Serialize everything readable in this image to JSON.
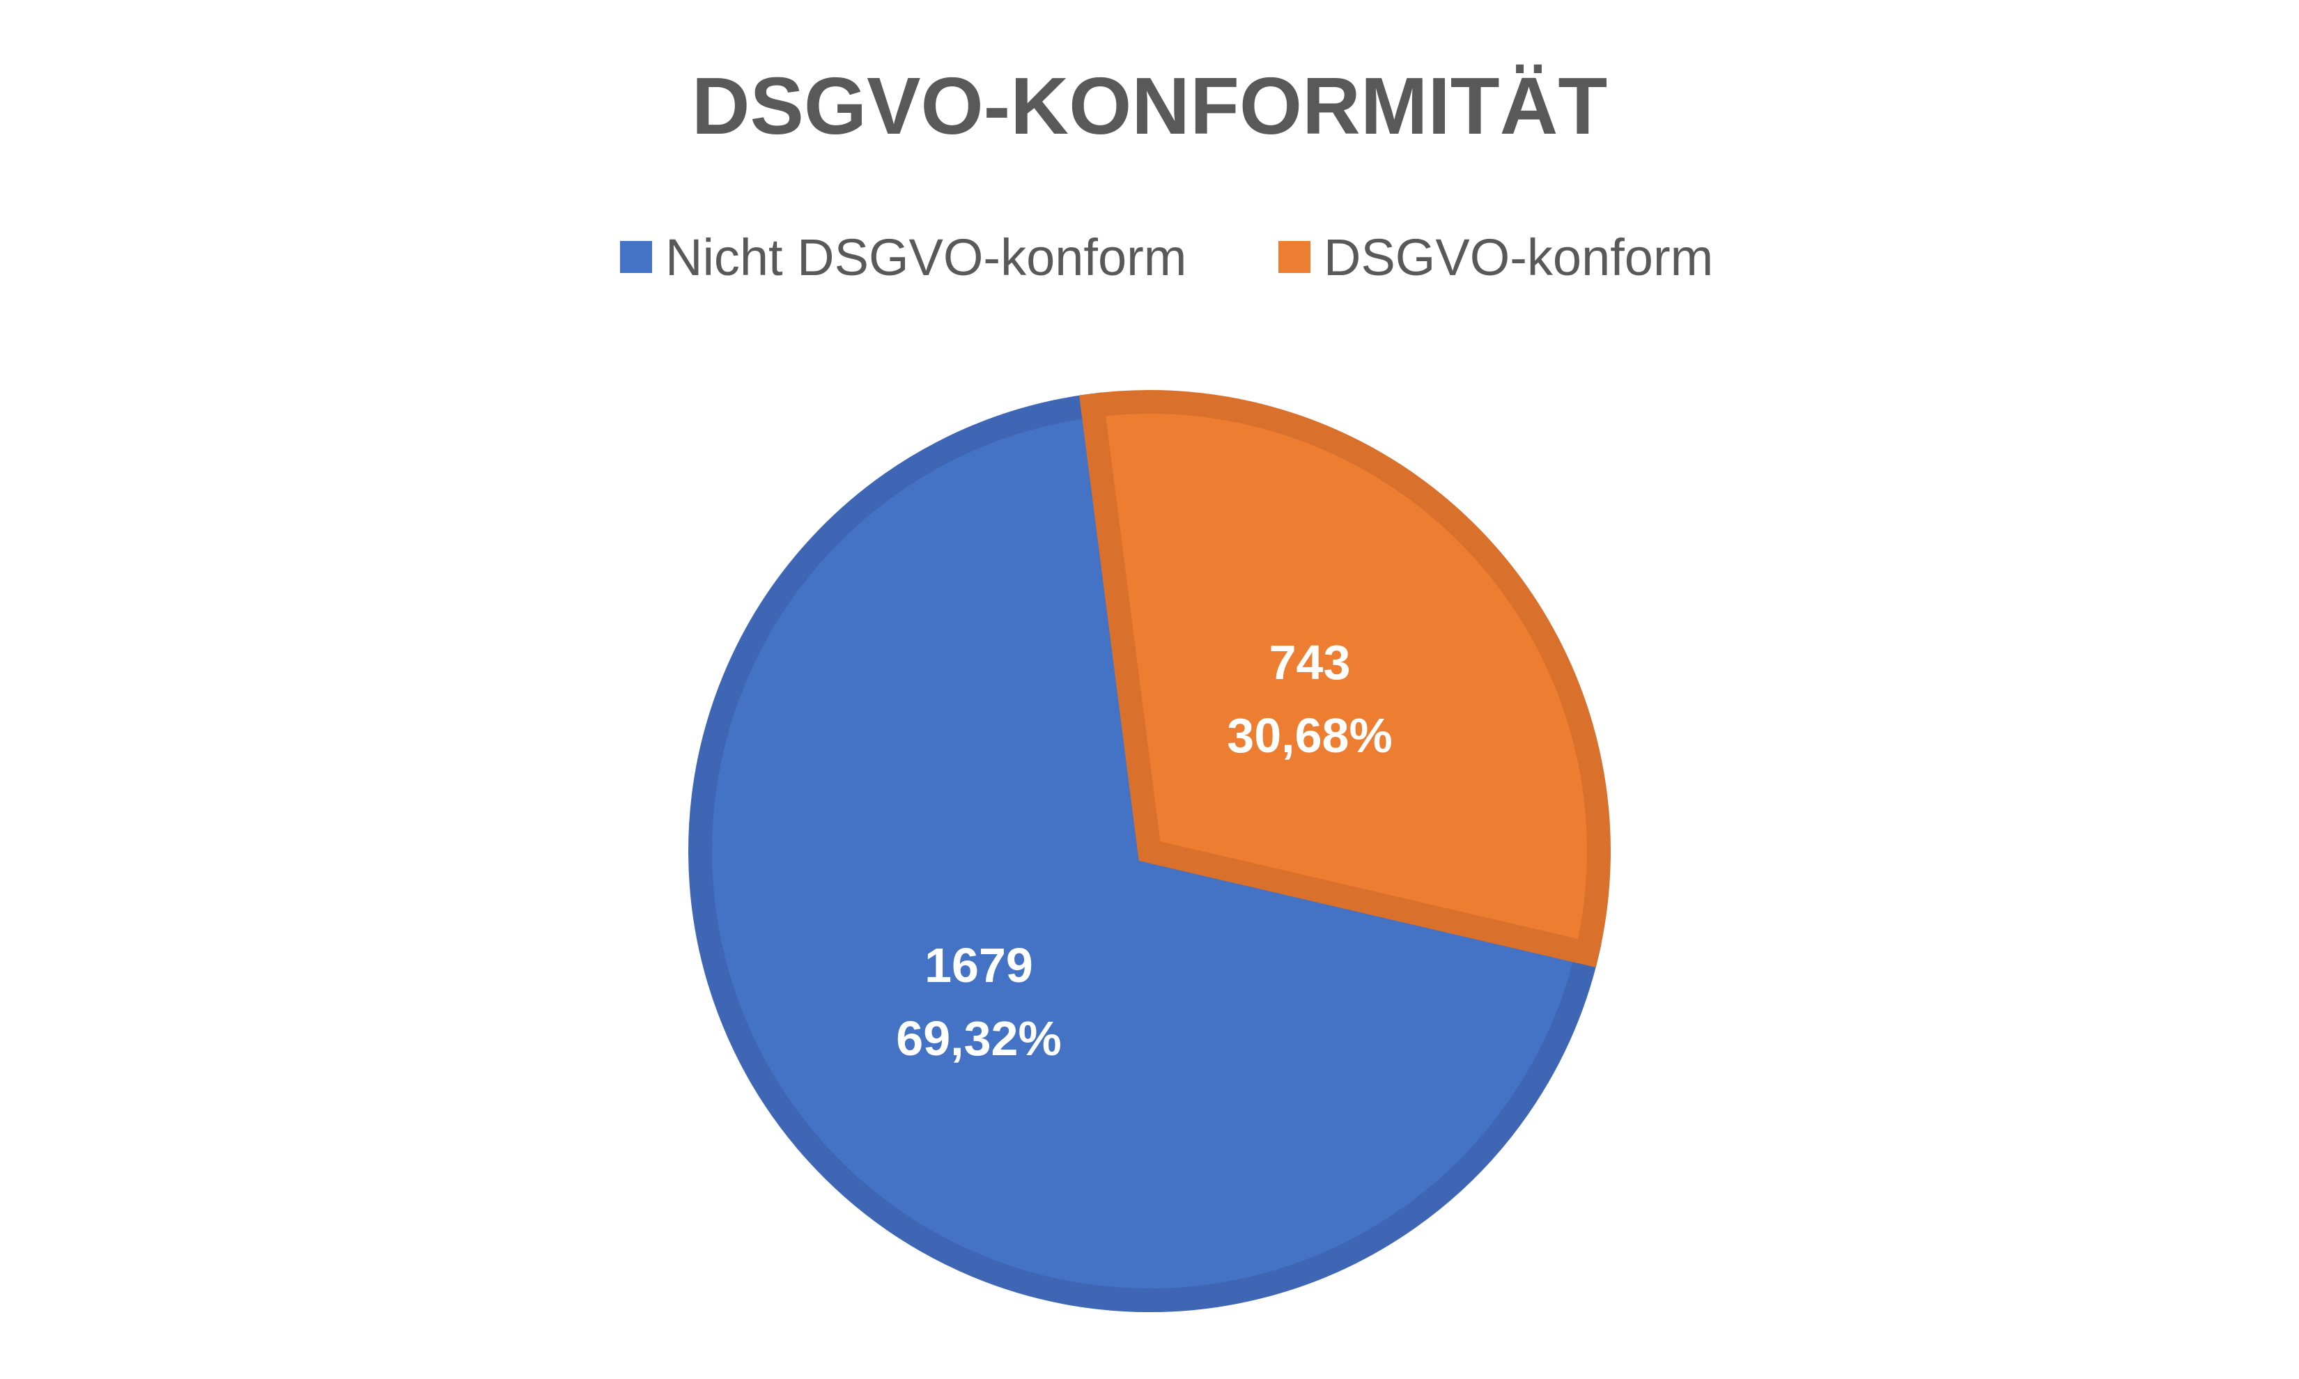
{
  "chart_data": {
    "type": "pie",
    "title": "DSGVO-KONFORMITÄT",
    "legend_position": "top",
    "slices": [
      {
        "label": "Nicht DSGVO-konform",
        "value": 1679,
        "percent_label": "69,32%",
        "value_label": "1679",
        "color": "#4472C4",
        "border_color": "#3F66B5"
      },
      {
        "label": "DSGVO-konform",
        "value": 743,
        "percent_label": "30,68%",
        "value_label": "743",
        "color": "#ED7D31",
        "border_color": "#D9702C"
      }
    ],
    "start_angle_deg": 352.7
  }
}
